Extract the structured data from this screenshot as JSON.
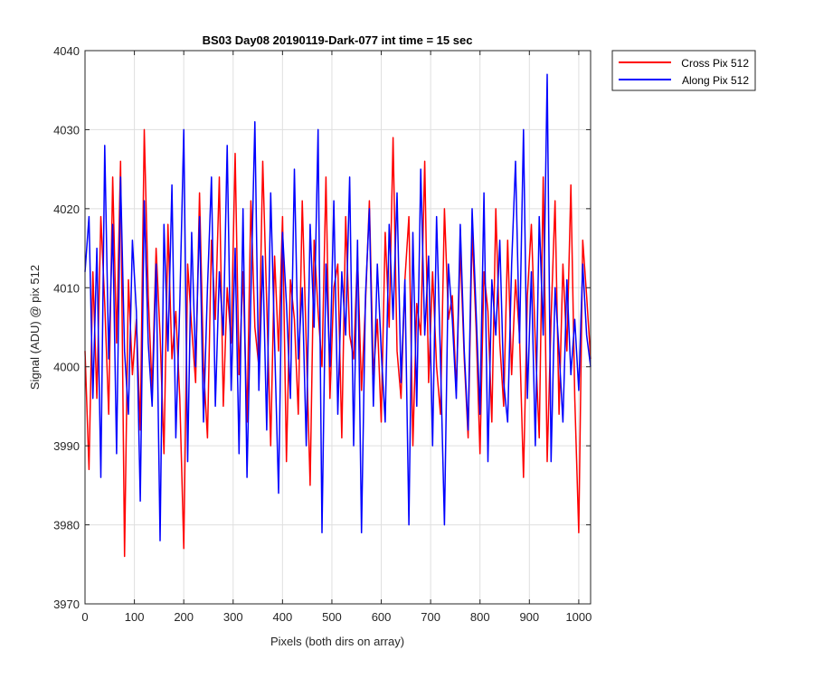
{
  "chart_data": {
    "type": "line",
    "title": "BS03 Day08 20190119-Dark-077 int time = 15 sec",
    "xlabel": "Pixels (both dirs on array)",
    "ylabel": "Signal (ADU) @ pix 512",
    "xlim": [
      0,
      1024
    ],
    "ylim": [
      3970,
      4040
    ],
    "xticks": [
      0,
      100,
      200,
      300,
      400,
      500,
      600,
      700,
      800,
      900,
      1000
    ],
    "yticks": [
      3970,
      3980,
      3990,
      4000,
      4010,
      4020,
      4030,
      4040
    ],
    "grid": true,
    "legend_position": "outside-top-right",
    "series": [
      {
        "name": "Cross Pix 512",
        "color": "#ff0000",
        "x": [
          0,
          8,
          16,
          24,
          32,
          40,
          48,
          56,
          64,
          72,
          80,
          88,
          96,
          104,
          112,
          120,
          128,
          136,
          144,
          152,
          160,
          168,
          176,
          184,
          192,
          200,
          208,
          216,
          224,
          232,
          240,
          248,
          256,
          264,
          272,
          280,
          288,
          296,
          304,
          312,
          320,
          328,
          336,
          344,
          352,
          360,
          368,
          376,
          384,
          392,
          400,
          408,
          416,
          424,
          432,
          440,
          448,
          456,
          464,
          472,
          480,
          488,
          496,
          504,
          512,
          520,
          528,
          536,
          544,
          552,
          560,
          568,
          576,
          584,
          592,
          600,
          608,
          616,
          624,
          632,
          640,
          648,
          656,
          664,
          672,
          680,
          688,
          696,
          704,
          712,
          720,
          728,
          736,
          744,
          752,
          760,
          768,
          776,
          784,
          792,
          800,
          808,
          816,
          824,
          832,
          840,
          848,
          856,
          864,
          872,
          880,
          888,
          896,
          904,
          912,
          920,
          928,
          936,
          944,
          952,
          960,
          968,
          976,
          984,
          992,
          1000,
          1008,
          1016,
          1024
        ],
        "values": [
          4002,
          3987,
          4012,
          3996,
          4019,
          4008,
          3994,
          4024,
          4003,
          4026,
          3976,
          4011,
          3999,
          4006,
          3992,
          4030,
          4009,
          3997,
          4015,
          4004,
          3989,
          4018,
          4001,
          4007,
          3996,
          3977,
          4013,
          4005,
          3998,
          4022,
          4000,
          3991,
          4016,
          4006,
          4024,
          3995,
          4010,
          4003,
          4027,
          3999,
          4012,
          3993,
          4021,
          4005,
          4000,
          4026,
          4008,
          3990,
          4014,
          4002,
          4019,
          3988,
          4011,
          4006,
          3994,
          4021,
          4003,
          3985,
          4016,
          4007,
          4000,
          4024,
          3996,
          4010,
          4013,
          3991,
          4019,
          4004,
          4001,
          4014,
          3997,
          4008,
          4021,
          3999,
          4006,
          3993,
          4017,
          4005,
          4029,
          4002,
          3996,
          4011,
          4019,
          3990,
          4008,
          4004,
          4026,
          3998,
          4012,
          4000,
          3994,
          4020,
          4006,
          4009,
          3997,
          4015,
          4001,
          3991,
          4017,
          4005,
          3989,
          4012,
          4007,
          3993,
          4020,
          4003,
          3995,
          4016,
          3999,
          4011,
          4004,
          3986,
          4009,
          4018,
          4003,
          3991,
          4024,
          3988,
          4006,
          4021,
          3994,
          4013,
          4002,
          4023,
          3996,
          3979,
          4016,
          4009,
          4001
        ]
      },
      {
        "name": "Along Pix 512",
        "color": "#0000ff",
        "x": [
          0,
          8,
          16,
          24,
          32,
          40,
          48,
          56,
          64,
          72,
          80,
          88,
          96,
          104,
          112,
          120,
          128,
          136,
          144,
          152,
          160,
          168,
          176,
          184,
          192,
          200,
          208,
          216,
          224,
          232,
          240,
          248,
          256,
          264,
          272,
          280,
          288,
          296,
          304,
          312,
          320,
          328,
          336,
          344,
          352,
          360,
          368,
          376,
          384,
          392,
          400,
          408,
          416,
          424,
          432,
          440,
          448,
          456,
          464,
          472,
          480,
          488,
          496,
          504,
          512,
          520,
          528,
          536,
          544,
          552,
          560,
          568,
          576,
          584,
          592,
          600,
          608,
          616,
          624,
          632,
          640,
          648,
          656,
          664,
          672,
          680,
          688,
          696,
          704,
          712,
          720,
          728,
          736,
          744,
          752,
          760,
          768,
          776,
          784,
          792,
          800,
          808,
          816,
          824,
          832,
          840,
          848,
          856,
          864,
          872,
          880,
          888,
          896,
          904,
          912,
          920,
          928,
          936,
          944,
          952,
          960,
          968,
          976,
          984,
          992,
          1000,
          1008,
          1016,
          1024
        ],
        "values": [
          4012,
          4019,
          3996,
          4015,
          3986,
          4028,
          4001,
          4018,
          3989,
          4024,
          4002,
          3994,
          4016,
          4007,
          3983,
          4021,
          4003,
          3995,
          4013,
          3978,
          4018,
          4002,
          4023,
          3991,
          4008,
          4030,
          3988,
          4017,
          4000,
          4019,
          3993,
          4010,
          4024,
          3995,
          4012,
          4004,
          4028,
          3997,
          4015,
          3989,
          4020,
          3986,
          4009,
          4031,
          3997,
          4014,
          3992,
          4022,
          4003,
          3984,
          4017,
          4008,
          3996,
          4025,
          4001,
          4010,
          3990,
          4018,
          4005,
          4030,
          3979,
          4013,
          4000,
          4021,
          3994,
          4012,
          4004,
          4024,
          3990,
          4016,
          3979,
          4009,
          4020,
          3995,
          4013,
          4002,
          3993,
          4018,
          4006,
          4022,
          3998,
          4011,
          3980,
          4017,
          3995,
          4025,
          4004,
          4014,
          3990,
          4019,
          4001,
          3980,
          4013,
          4006,
          3996,
          4018,
          4002,
          3992,
          4020,
          4007,
          3994,
          4022,
          3988,
          4011,
          4004,
          4016,
          3998,
          3993,
          4013,
          4026,
          4003,
          4030,
          3996,
          4012,
          3990,
          4019,
          4004,
          4037,
          3988,
          4010,
          4002,
          3993,
          4011,
          3999,
          4006,
          3997,
          4013,
          4004,
          4000
        ]
      }
    ]
  }
}
